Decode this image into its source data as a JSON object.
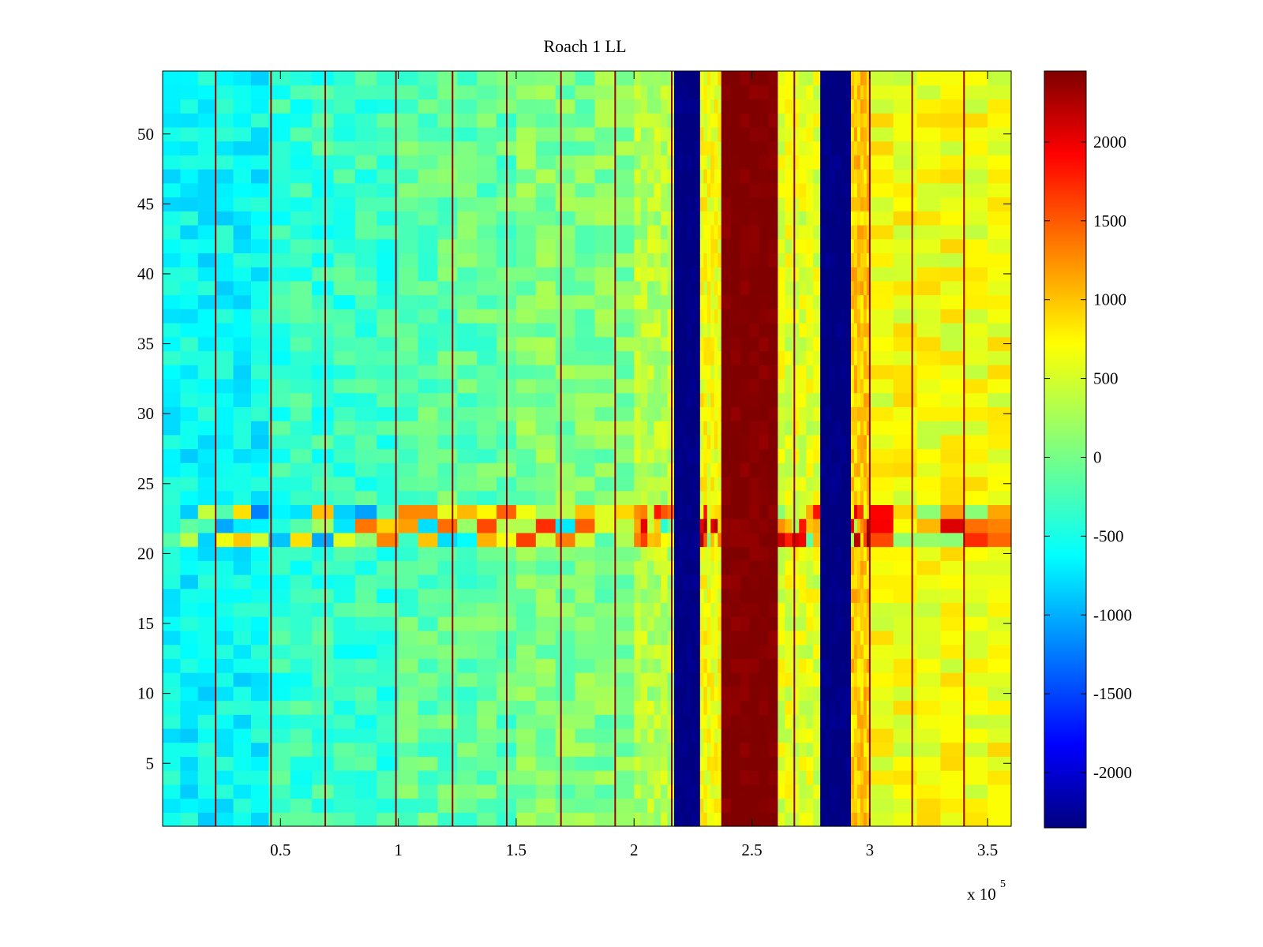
{
  "chart_data": {
    "type": "heatmap",
    "title": "Roach 1 LL",
    "xlabel": "",
    "ylabel": "",
    "x_multiplier_label": "x 10",
    "x_multiplier_exponent": "5",
    "x_scale": 100000,
    "xlim": [
      0,
      360000
    ],
    "ylim": [
      0.5,
      54.5
    ],
    "x_ticks": [
      50000,
      100000,
      150000,
      200000,
      250000,
      300000,
      350000
    ],
    "x_tick_labels": [
      "0.5",
      "1",
      "1.5",
      "2",
      "2.5",
      "3",
      "3.5"
    ],
    "y_ticks": [
      5,
      10,
      15,
      20,
      25,
      30,
      35,
      40,
      45,
      50
    ],
    "y_tick_labels": [
      "5",
      "10",
      "15",
      "20",
      "25",
      "30",
      "35",
      "40",
      "45",
      "50"
    ],
    "rows": 54,
    "colorbar": {
      "clim": [
        -2350,
        2450
      ],
      "ticks": [
        -2000,
        -1500,
        -1000,
        -500,
        0,
        500,
        1000,
        1500,
        2000
      ],
      "tick_labels": [
        "-2000",
        "-1500",
        "-1000",
        "-500",
        "0",
        "500",
        "1000",
        "1500",
        "2000"
      ],
      "colormap": "jet"
    },
    "column_bands": [
      {
        "x_start": 0,
        "x_end": 45000,
        "value": -550
      },
      {
        "x_start": 45000,
        "x_end": 100000,
        "value": -300
      },
      {
        "x_start": 100000,
        "x_end": 150000,
        "value": -100
      },
      {
        "x_start": 150000,
        "x_end": 200000,
        "value": 50
      },
      {
        "x_start": 200000,
        "x_end": 217000,
        "value": 300
      },
      {
        "x_start": 217000,
        "x_end": 228000,
        "value": -2350
      },
      {
        "x_start": 228000,
        "x_end": 237000,
        "value": 600
      },
      {
        "x_start": 237000,
        "x_end": 261000,
        "value": 2450
      },
      {
        "x_start": 261000,
        "x_end": 279000,
        "value": 500
      },
      {
        "x_start": 279000,
        "x_end": 292000,
        "value": -2350
      },
      {
        "x_start": 292000,
        "x_end": 300000,
        "value": 900
      },
      {
        "x_start": 300000,
        "x_end": 360000,
        "value": 600
      }
    ],
    "row_band_rows": [
      21,
      23
    ],
    "spike_x": [
      22500,
      46000,
      69000,
      99000,
      123000,
      146000,
      169000,
      192000,
      216000,
      268000,
      300000,
      318000,
      340000
    ]
  }
}
